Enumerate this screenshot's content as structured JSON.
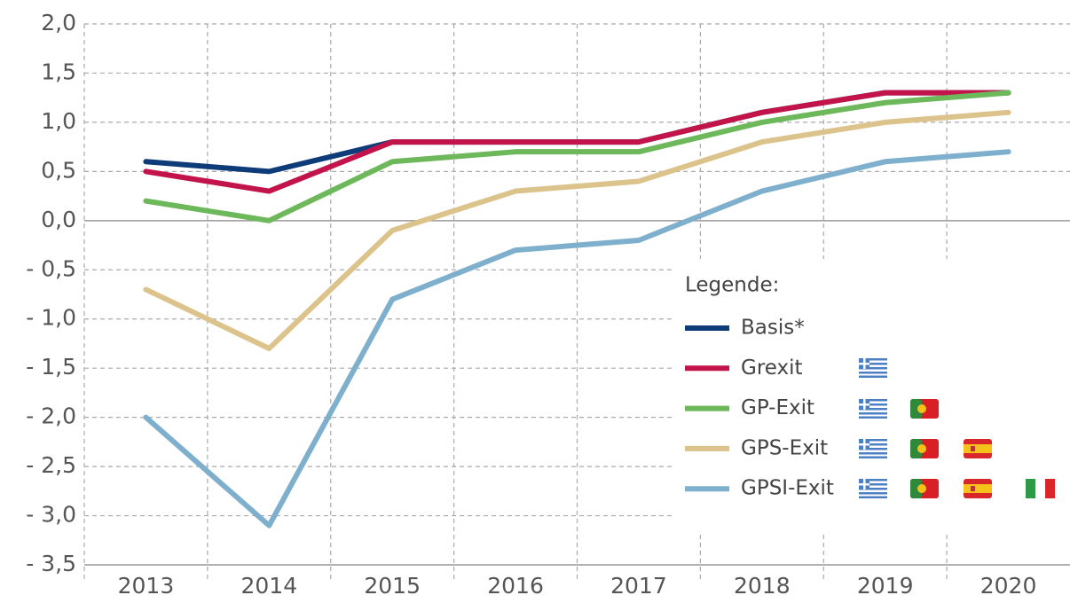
{
  "chart_data": {
    "type": "line",
    "categories": [
      "2013",
      "2014",
      "2015",
      "2016",
      "2017",
      "2018",
      "2019",
      "2020"
    ],
    "series": [
      {
        "name": "Basis*",
        "color": "#0e3c78",
        "values": [
          0.6,
          0.5,
          0.8,
          0.8,
          0.8,
          1.1,
          1.3,
          1.3
        ]
      },
      {
        "name": "Grexit",
        "color": "#c2134b",
        "values": [
          0.5,
          0.3,
          0.8,
          0.8,
          0.8,
          1.1,
          1.3,
          1.3
        ]
      },
      {
        "name": "GP-Exit",
        "color": "#6cb85a",
        "values": [
          0.2,
          0.0,
          0.6,
          0.7,
          0.7,
          1.0,
          1.2,
          1.3
        ]
      },
      {
        "name": "GPS-Exit",
        "color": "#dcc38b",
        "values": [
          -0.7,
          -1.3,
          -0.1,
          0.3,
          0.4,
          0.8,
          1.0,
          1.1
        ]
      },
      {
        "name": "GPSI-Exit",
        "color": "#7eb0cd",
        "values": [
          -2.0,
          -3.1,
          -0.8,
          -0.3,
          -0.2,
          0.3,
          0.6,
          0.7
        ]
      }
    ],
    "legend_title": "Legende:",
    "ylim": [
      -3.5,
      2.0
    ],
    "yticks": [
      {
        "value": 2.0,
        "label": "2,0"
      },
      {
        "value": 1.5,
        "label": "1,5"
      },
      {
        "value": 1.0,
        "label": "1,0"
      },
      {
        "value": 0.5,
        "label": "0,5"
      },
      {
        "value": 0.0,
        "label": "0,0"
      },
      {
        "value": -0.5,
        "label": "- 0,5"
      },
      {
        "value": -1.0,
        "label": "- 1,0"
      },
      {
        "value": -1.5,
        "label": "- 1,5"
      },
      {
        "value": -2.0,
        "label": "- 2,0"
      },
      {
        "value": -2.5,
        "label": "- 2,5"
      },
      {
        "value": -3.0,
        "label": "- 3,0"
      },
      {
        "value": -3.5,
        "label": "- 3,5"
      }
    ],
    "grid": true
  }
}
